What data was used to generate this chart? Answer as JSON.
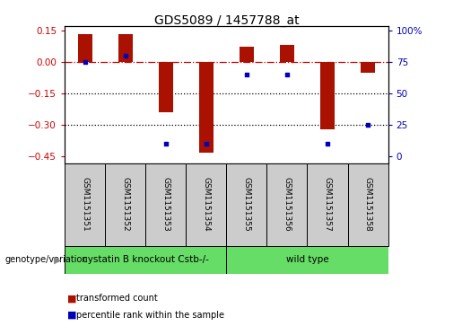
{
  "title": "GDS5089 / 1457788_at",
  "samples": [
    "GSM1151351",
    "GSM1151352",
    "GSM1151353",
    "GSM1151354",
    "GSM1151355",
    "GSM1151356",
    "GSM1151357",
    "GSM1151358"
  ],
  "red_bars": [
    0.13,
    0.13,
    -0.24,
    -0.43,
    0.07,
    0.08,
    -0.32,
    -0.05
  ],
  "blue_pct": [
    75,
    80,
    10,
    10,
    65,
    65,
    10,
    25
  ],
  "ylim": [
    -0.48,
    0.17
  ],
  "yticks_left": [
    0.15,
    0.0,
    -0.15,
    -0.3,
    -0.45
  ],
  "yticks_right_pct": [
    100,
    75,
    50,
    25,
    0
  ],
  "group1_label": "cystatin B knockout Cstb-/-",
  "group1_count": 4,
  "group2_label": "wild type",
  "group2_count": 4,
  "genotype_label": "genotype/variation",
  "legend_red": "transformed count",
  "legend_blue": "percentile rank within the sample",
  "bar_color": "#AA1100",
  "blue_color": "#0000BB",
  "group1_color": "#66DD66",
  "group2_color": "#66DD66",
  "sample_bg_color": "#CCCCCC",
  "hline_color": "#CC0000",
  "bar_width": 0.35,
  "title_fontsize": 10,
  "tick_fontsize": 7.5,
  "sample_fontsize": 6.5,
  "group_fontsize": 7.5
}
